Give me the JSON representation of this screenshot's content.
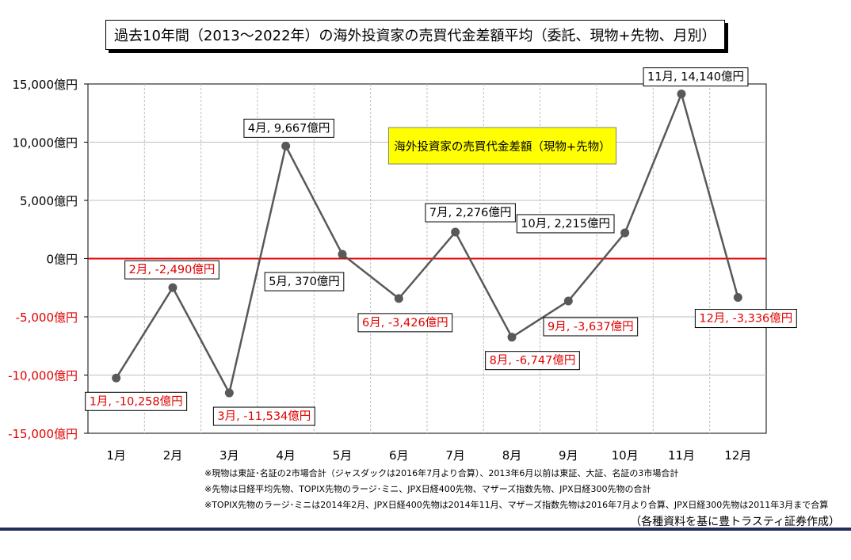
{
  "title": "過去10年間（2013〜2022年）の海外投資家の売買代金差額平均（委託、現物+先物、月別）",
  "legend_label": "海外投資家の売買代金差額（現物+先物）",
  "notes": [
    "※現物は東証･名証の2市場合計（ジャスダックは2016年7月より合算）、2013年6月以前は東証、大証、名証の3市場合計",
    "※先物は日経平均先物、TOPIX先物のラージ･ミニ、JPX日経400先物、マザーズ指数先物、JPX日経300先物の合計",
    "※TOPIX先物のラージ･ミニは2014年2月、JPX日経400先物は2014年11月、マザーズ指数先物は2016年7月より合算、JPX日経300先物は2011年3月まで合算"
  ],
  "source": "（各種資料を基に豊トラスティ証券作成）",
  "colors": {
    "line": "#595959",
    "zero_line": "#e00000",
    "negative_label": "#e00000",
    "positive_label": "#000000",
    "legend_bg": "#ffff00",
    "grid": "#bfbfbf",
    "bottom_rule": "#1f2f5a"
  },
  "chart_data": {
    "type": "line",
    "categories": [
      "1月",
      "2月",
      "3月",
      "4月",
      "5月",
      "6月",
      "7月",
      "8月",
      "9月",
      "10月",
      "11月",
      "12月"
    ],
    "series": [
      {
        "name": "海外投資家の売買代金差額（現物+先物）",
        "values": [
          -10258,
          -2490,
          -11534,
          9667,
          370,
          -3426,
          2276,
          -6747,
          -3637,
          2215,
          14140,
          -3336
        ]
      }
    ],
    "data_labels": [
      "1月, -10,258億円",
      "2月, -2,490億円",
      "3月, -11,534億円",
      "4月, 9,667億円",
      "5月, 370億円",
      "6月, -3,426億円",
      "7月, 2,276億円",
      "8月, -6,747億円",
      "9月, -3,637億円",
      "10月, 2,215億円",
      "11月, 14,140億円",
      "12月, -3,336億円"
    ],
    "y_ticks": [
      15000,
      10000,
      5000,
      0,
      -5000,
      -10000,
      -15000
    ],
    "y_tick_labels": [
      "15,000億円",
      "10,000億円",
      "5,000億円",
      "0億円",
      "-5,000億円",
      "-10,000億円",
      "-15,000億円"
    ],
    "ylim": [
      -15000,
      15000
    ],
    "grid": true,
    "legend_position": "top-center"
  }
}
